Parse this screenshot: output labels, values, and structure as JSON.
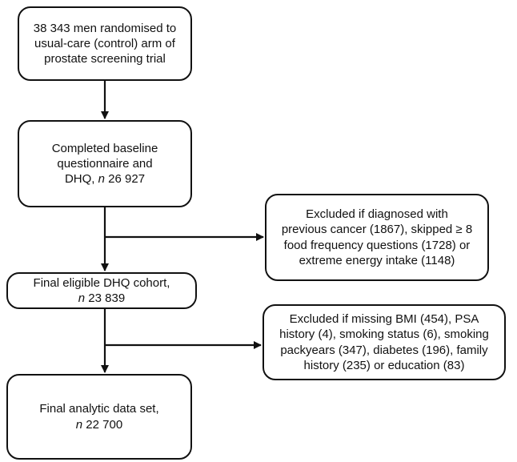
{
  "flowchart": {
    "box1": {
      "lines": [
        "38 343 men randomised to",
        "usual-care (control) arm of",
        "prostate screening trial"
      ]
    },
    "box2": {
      "line1": "Completed baseline",
      "line2": "questionnaire and",
      "line3_prefix": "DHQ, ",
      "line3_n": "n",
      "line3_value": " 26 927"
    },
    "box3": {
      "lines": [
        "Excluded if diagnosed with",
        "previous cancer (1867), skipped ≥ 8",
        "food frequency questions (1728) or",
        "extreme energy intake (1148)"
      ]
    },
    "box4": {
      "line1": "Final eligible DHQ cohort,",
      "line2_n": "n",
      "line2_value": " 23 839"
    },
    "box5": {
      "lines": [
        "Excluded if missing BMI (454), PSA",
        "history (4), smoking status (6), smoking",
        "packyears (347), diabetes (196), family",
        "history (235) or education (83)"
      ]
    },
    "box6": {
      "line1": "Final analytic data set,",
      "line2_n": "n",
      "line2_value": " 22 700"
    }
  }
}
